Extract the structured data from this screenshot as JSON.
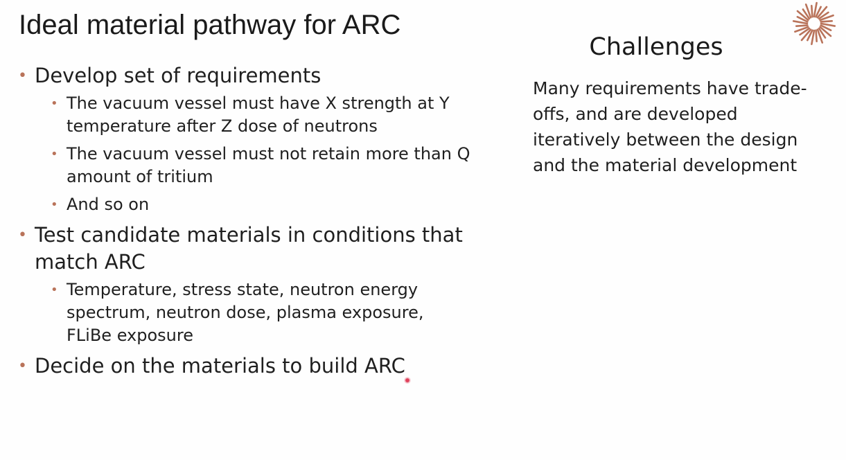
{
  "slide": {
    "title": "Ideal material pathway for ARC",
    "logo_icon": "sunburst-logo-icon",
    "accent_color": "#b9735a",
    "bullet_glyph": "•",
    "bullets": [
      {
        "text": "Develop set of requirements",
        "subitems": [
          "The vacuum vessel must have X strength at Y temperature after Z dose of neutrons",
          "The vacuum vessel must not retain more than Q amount of tritium",
          "And so on"
        ]
      },
      {
        "text": "Test candidate materials in conditions that match ARC",
        "subitems": [
          "Temperature, stress state, neutron energy spectrum, neutron dose, plasma exposure, FLiBe exposure"
        ]
      },
      {
        "text": "Decide on the materials to build ARC",
        "subitems": []
      }
    ],
    "challenges": {
      "heading": "Challenges",
      "body": "Many requirements have trade-offs, and are developed iteratively between the design and the material development"
    }
  }
}
